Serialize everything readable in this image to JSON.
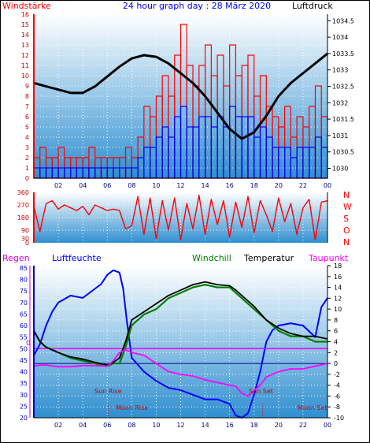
{
  "header": {
    "left_label": "Windstärke",
    "title": "24 hour graph day : 28 März 2020",
    "right_label": "Luftdruck"
  },
  "lower_header": {
    "regen": "Regen",
    "luftfeuchte": "Luftfeuchte",
    "windchill": "Windchill",
    "temperatur": "Temperatur",
    "taupunkt": "Taupunkt"
  },
  "annotations": {
    "sun_rise": "Sun Rise",
    "moon_rise": "Moon Rise",
    "sun_set": "Sun Set",
    "moon_set": "Moon Set",
    "zero_mark": "0"
  },
  "colors": {
    "wind": "#ff0000",
    "gust_low": "#0000ff",
    "pressure": "#000000",
    "direction": "#ff0000",
    "humidity": "#0000ff",
    "windchill": "#008000",
    "temperature": "#000000",
    "dewpoint": "#ff00ff",
    "rain_line": "#ff00ff",
    "bg_top": "#ffffff",
    "bg_bottom": "#2f8fd0"
  },
  "chart_data": [
    {
      "id": "wind_pressure",
      "type": "line",
      "x_ticks": [
        "02",
        "04",
        "06",
        "08",
        "10",
        "12",
        "14",
        "16",
        "18",
        "20",
        "22",
        "00"
      ],
      "y_left": {
        "label": "Windstärke",
        "range": [
          0,
          16
        ],
        "ticks": [
          0,
          1,
          2,
          3,
          4,
          5,
          6,
          7,
          8,
          9,
          10,
          11,
          12,
          13,
          14,
          15,
          16
        ]
      },
      "y_right": {
        "label": "Luftdruck",
        "range": [
          1029.7,
          1034.7
        ],
        "ticks": [
          "1030",
          "1030.5",
          "1031",
          "1031.5",
          "1032",
          "1032.5",
          "1033",
          "1033.5",
          "1034",
          "1034.5"
        ]
      },
      "series": [
        {
          "key": "wind",
          "hours": [
            0,
            0.5,
            1,
            1.5,
            2,
            2.5,
            3,
            3.5,
            4,
            4.5,
            5,
            5.5,
            6,
            6.5,
            7,
            7.5,
            8,
            8.5,
            9,
            9.5,
            10,
            10.5,
            11,
            11.5,
            12,
            12.5,
            13,
            13.5,
            14,
            14.5,
            15,
            15.5,
            16,
            16.5,
            17,
            17.5,
            18,
            18.5,
            19,
            19.5,
            20,
            20.5,
            21,
            21.5,
            22,
            22.5,
            23,
            23.5,
            24
          ],
          "values": [
            2,
            3,
            2,
            2,
            3,
            2,
            2,
            2,
            2,
            3,
            2,
            2,
            2,
            2,
            2,
            3,
            2,
            4,
            7,
            6,
            8,
            10,
            8,
            12,
            15,
            11,
            9,
            11,
            13,
            10,
            12,
            9,
            13,
            10,
            11,
            12,
            8,
            10,
            7,
            6,
            5,
            7,
            4,
            6,
            5,
            7,
            9,
            6,
            4
          ]
        },
        {
          "key": "gust_low",
          "hours": [
            0,
            0.5,
            1,
            1.5,
            2,
            2.5,
            3,
            3.5,
            4,
            4.5,
            5,
            5.5,
            6,
            6.5,
            7,
            7.5,
            8,
            8.5,
            9,
            9.5,
            10,
            10.5,
            11,
            11.5,
            12,
            12.5,
            13,
            13.5,
            14,
            14.5,
            15,
            15.5,
            16,
            16.5,
            17,
            17.5,
            18,
            18.5,
            19,
            19.5,
            20,
            20.5,
            21,
            21.5,
            22,
            22.5,
            23,
            23.5,
            24
          ],
          "values": [
            1,
            1,
            1,
            1,
            1,
            1,
            1,
            1,
            1,
            1,
            1,
            1,
            1,
            1,
            1,
            1,
            1,
            2,
            3,
            3,
            4,
            5,
            4,
            6,
            7,
            5,
            5,
            6,
            6,
            5,
            6,
            5,
            7,
            6,
            6,
            6,
            4,
            5,
            4,
            3,
            3,
            3,
            2,
            3,
            3,
            3,
            4,
            3,
            2
          ]
        },
        {
          "key": "pressure",
          "hours": [
            0,
            1,
            2,
            3,
            4,
            5,
            6,
            7,
            8,
            9,
            10,
            11,
            12,
            13,
            14,
            15,
            16,
            17,
            18,
            19,
            20,
            21,
            22,
            23,
            24
          ],
          "values": [
            1032.6,
            1032.5,
            1032.4,
            1032.3,
            1032.3,
            1032.5,
            1032.8,
            1033.1,
            1033.35,
            1033.45,
            1033.4,
            1033.2,
            1032.9,
            1032.6,
            1032.2,
            1031.7,
            1031.2,
            1030.9,
            1031.1,
            1031.6,
            1032.2,
            1032.6,
            1032.9,
            1033.2,
            1033.5
          ]
        }
      ]
    },
    {
      "id": "wind_direction",
      "type": "line",
      "x_ticks": [],
      "y_left": {
        "range": [
          0,
          360
        ],
        "ticks": [
          0,
          30,
          90,
          180,
          270,
          360
        ]
      },
      "y_right": {
        "compass": [
          "N",
          "W",
          "S",
          "O",
          "N"
        ]
      },
      "series": [
        {
          "key": "direction",
          "hours": [
            0,
            0.5,
            1,
            1.5,
            2,
            2.5,
            3,
            3.5,
            4,
            4.5,
            5,
            5.5,
            6,
            6.5,
            7,
            7.5,
            8,
            8.5,
            9,
            9.5,
            10,
            10.5,
            11,
            11.5,
            12,
            12.5,
            13,
            13.5,
            14,
            14.5,
            15,
            15.5,
            16,
            16.5,
            17,
            17.5,
            18,
            18.5,
            19,
            19.5,
            20,
            20.5,
            21,
            21.5,
            22,
            22.5,
            23,
            23.5,
            24
          ],
          "values": [
            260,
            80,
            280,
            300,
            240,
            270,
            250,
            230,
            260,
            200,
            270,
            250,
            230,
            240,
            230,
            100,
            120,
            330,
            60,
            320,
            30,
            300,
            90,
            320,
            20,
            280,
            100,
            340,
            60,
            310,
            130,
            300,
            40,
            290,
            110,
            330,
            70,
            300,
            200,
            80,
            320,
            150,
            280,
            60,
            250,
            310,
            20,
            290,
            300
          ]
        }
      ]
    },
    {
      "id": "humidity_temperature",
      "type": "line",
      "x_ticks": [
        "02",
        "04",
        "06",
        "08",
        "10",
        "12",
        "14",
        "16",
        "18",
        "20",
        "22",
        "00"
      ],
      "y_left": {
        "label": "Luftfeuchte",
        "range": [
          20,
          86
        ],
        "ticks": [
          20,
          25,
          30,
          35,
          40,
          45,
          50,
          55,
          60,
          65,
          70,
          75,
          80,
          85
        ]
      },
      "y_right": {
        "label": "Temperatur",
        "range": [
          -10,
          18
        ],
        "ticks": [
          -10,
          -8,
          -6,
          -4,
          -2,
          0,
          2,
          4,
          6,
          8,
          10,
          12,
          14,
          16,
          18
        ]
      },
      "sun_rise_hour": 6.1,
      "sun_set_hour": 18.7,
      "series": [
        {
          "key": "humidity",
          "axis": "left",
          "hours": [
            0,
            0.5,
            1,
            1.5,
            2,
            3,
            4,
            5,
            5.5,
            6,
            6.5,
            7,
            7.3,
            7.6,
            8,
            9,
            10,
            11,
            12,
            13,
            14,
            15,
            16,
            16.5,
            17,
            17.5,
            18,
            18.5,
            19,
            19.5,
            20,
            21,
            22,
            23,
            23.5,
            24
          ],
          "values": [
            47,
            52,
            60,
            66,
            70,
            73,
            72,
            76,
            78,
            82,
            84,
            83,
            76,
            62,
            46,
            40,
            36,
            33,
            32,
            30,
            28,
            28,
            26,
            21,
            20,
            22,
            30,
            40,
            53,
            58,
            60,
            61,
            60,
            55,
            68,
            72
          ]
        },
        {
          "key": "windchill",
          "axis": "right",
          "hours": [
            0,
            0.5,
            1,
            2,
            3,
            4,
            5,
            6,
            6.5,
            7,
            7.5,
            8,
            9,
            10,
            11,
            12,
            13,
            14,
            15,
            16,
            16.5,
            17,
            18,
            19,
            20,
            21,
            22,
            23,
            24
          ],
          "values": [
            6,
            4,
            3,
            2,
            1,
            0.5,
            0,
            -0.5,
            0,
            0,
            3,
            7,
            9,
            10,
            12,
            13,
            14,
            14.5,
            14,
            14,
            13,
            12,
            10,
            8,
            6,
            5,
            5,
            4,
            4
          ]
        },
        {
          "key": "temperature",
          "axis": "right",
          "hours": [
            0,
            0.5,
            1,
            2,
            3,
            4,
            5,
            6,
            6.5,
            7,
            7.5,
            8,
            9,
            10,
            11,
            12,
            13,
            14,
            15,
            16,
            16.5,
            17,
            18,
            19,
            20,
            21,
            22,
            23,
            24
          ],
          "values": [
            6,
            4,
            3,
            2,
            1.2,
            0.8,
            0.2,
            -0.3,
            0.2,
            1,
            4,
            8,
            9.5,
            11,
            12.5,
            13.5,
            14.5,
            15,
            14.5,
            14.3,
            13.5,
            12.5,
            10.5,
            8,
            6.5,
            5.5,
            5,
            5,
            4.5
          ]
        },
        {
          "key": "dewpoint",
          "axis": "right",
          "hours": [
            0,
            0.5,
            1,
            2,
            3,
            4,
            5,
            6,
            6.5,
            7,
            7.5,
            8,
            9,
            10,
            11,
            12,
            13,
            14,
            15,
            16,
            16.5,
            17,
            17.5,
            18,
            18.5,
            19,
            20,
            21,
            22,
            23,
            24
          ],
          "values": [
            -0.5,
            -0.3,
            -0.3,
            -0.6,
            -0.6,
            -0.4,
            -0.4,
            -0.5,
            0.5,
            2,
            2.5,
            2,
            1.5,
            0,
            -1.5,
            -2,
            -2.3,
            -3,
            -3.5,
            -4,
            -4.2,
            -5.5,
            -6,
            -5,
            -4,
            -2.5,
            -1.5,
            -1,
            -1,
            -0.5,
            0
          ]
        }
      ]
    }
  ]
}
